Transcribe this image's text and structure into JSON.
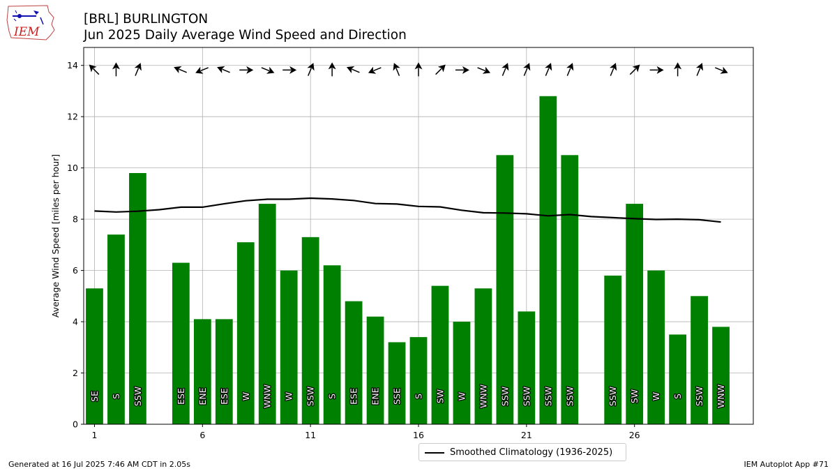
{
  "header": {
    "title_line1": "[BRL] BURLINGTON",
    "title_line2": "Jun 2025 Daily Average Wind Speed and Direction"
  },
  "logo": {
    "text": "IEM",
    "icon": "iem-iowa-logo-icon"
  },
  "footer": {
    "generated": "Generated at 16 Jul 2025 7:46 AM CDT in 2.05s",
    "app": "IEM Autoplot App #71"
  },
  "legend": {
    "climatology_label": "Smoothed Climatology (1936-2025)"
  },
  "colors": {
    "bar": "#008000",
    "line": "#000000",
    "grid": "#b0b0b0"
  },
  "chart_data": {
    "type": "bar",
    "ylabel": "Average Wind Speed [miles per hour]",
    "xlim": [
      0.5,
      31.5
    ],
    "ylim": [
      0,
      14.7
    ],
    "xticks": [
      1,
      6,
      11,
      16,
      21,
      26
    ],
    "yticks": [
      0,
      2,
      4,
      6,
      8,
      10,
      12,
      14
    ],
    "grid": true,
    "days": [
      1,
      2,
      3,
      5,
      6,
      7,
      8,
      9,
      10,
      11,
      12,
      13,
      14,
      15,
      16,
      17,
      18,
      19,
      20,
      21,
      22,
      23,
      25,
      26,
      27,
      28,
      29,
      30
    ],
    "speeds": [
      5.3,
      7.4,
      9.8,
      6.3,
      4.1,
      4.1,
      7.1,
      8.6,
      6.0,
      7.3,
      6.2,
      4.8,
      4.2,
      3.2,
      3.4,
      5.4,
      4.0,
      5.3,
      10.5,
      4.4,
      12.8,
      10.5,
      5.8,
      8.6,
      6.0,
      3.5,
      5.0,
      3.8
    ],
    "directions": [
      "SE",
      "S",
      "SSW",
      "ESE",
      "ENE",
      "ESE",
      "W",
      "WNW",
      "W",
      "SSW",
      "S",
      "ESE",
      "ENE",
      "SSE",
      "S",
      "SW",
      "W",
      "WNW",
      "SSW",
      "SSW",
      "SSW",
      "SSW",
      "SSW",
      "SW",
      "W",
      "S",
      "SSW",
      "WNW"
    ],
    "climatology": {
      "name": "Smoothed Climatology (1936-2025)",
      "x": [
        1,
        2,
        3,
        4,
        5,
        6,
        7,
        8,
        9,
        10,
        11,
        12,
        13,
        14,
        15,
        16,
        17,
        18,
        19,
        20,
        21,
        22,
        23,
        24,
        25,
        26,
        27,
        28,
        29,
        30
      ],
      "y": [
        8.32,
        8.28,
        8.31,
        8.37,
        8.47,
        8.47,
        8.6,
        8.72,
        8.78,
        8.78,
        8.82,
        8.79,
        8.73,
        8.61,
        8.59,
        8.5,
        8.48,
        8.35,
        8.25,
        8.24,
        8.21,
        8.13,
        8.18,
        8.1,
        8.06,
        8.02,
        7.99,
        8.0,
        7.98,
        7.89
      ]
    }
  }
}
